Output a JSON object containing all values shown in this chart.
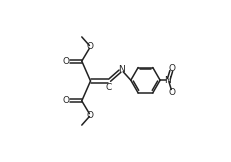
{
  "bg_color": "#ffffff",
  "line_color": "#222222",
  "lw": 1.1,
  "fs": 6.5,
  "figsize": [
    2.32,
    1.62
  ],
  "dpi": 100,
  "xlim": [
    0,
    1
  ],
  "ylim": [
    0,
    1
  ]
}
